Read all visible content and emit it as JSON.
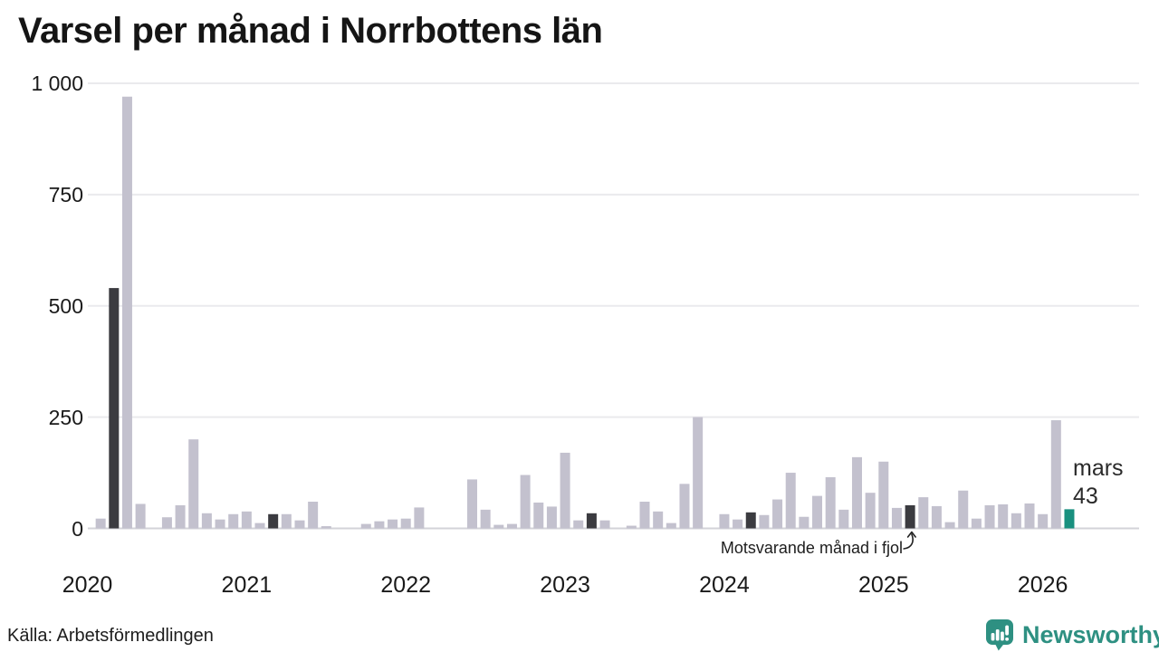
{
  "title": "Varsel per månad i Norrbottens län",
  "annotation": {
    "text": "Motsvarande månad i fjol",
    "target": "2025-03"
  },
  "highlight": {
    "month_label": "mars",
    "value_label": "43"
  },
  "footer": {
    "source": "Källa: Arbetsförmedlingen",
    "logo_text": "Newsworthy"
  },
  "colors": {
    "bar": "#c3c1ce",
    "bar_prev_year_month": "#3b3b40",
    "bar_current": "#19907f",
    "grid": "#eaeaed",
    "zero_axis": "#d3d3d8",
    "text": "#1a1a1a",
    "logo_teal": "#2e9082"
  },
  "chart_data": {
    "type": "bar",
    "title": "Varsel per månad i Norrbottens län",
    "xlabel": "",
    "ylabel": "",
    "ylim": [
      0,
      1000
    ],
    "grid": true,
    "yticks": [
      {
        "value": 0,
        "label": "0"
      },
      {
        "value": 250,
        "label": "250"
      },
      {
        "value": 500,
        "label": "500"
      },
      {
        "value": 750,
        "label": "750"
      },
      {
        "value": 1000,
        "label": "1 000"
      }
    ],
    "year_labels": [
      "2020",
      "2021",
      "2022",
      "2023",
      "2024",
      "2025",
      "2026"
    ],
    "months": [
      {
        "m": "2020-01",
        "v": 0
      },
      {
        "m": "2020-02",
        "v": 22
      },
      {
        "m": "2020-03",
        "v": 540,
        "s": "fjol"
      },
      {
        "m": "2020-04",
        "v": 970
      },
      {
        "m": "2020-05",
        "v": 55
      },
      {
        "m": "2020-06",
        "v": 0
      },
      {
        "m": "2020-07",
        "v": 25
      },
      {
        "m": "2020-08",
        "v": 52
      },
      {
        "m": "2020-09",
        "v": 200
      },
      {
        "m": "2020-10",
        "v": 34
      },
      {
        "m": "2020-11",
        "v": 20
      },
      {
        "m": "2020-12",
        "v": 32
      },
      {
        "m": "2021-01",
        "v": 38
      },
      {
        "m": "2021-02",
        "v": 12
      },
      {
        "m": "2021-03",
        "v": 32,
        "s": "fjol"
      },
      {
        "m": "2021-04",
        "v": 32
      },
      {
        "m": "2021-05",
        "v": 18
      },
      {
        "m": "2021-06",
        "v": 60
      },
      {
        "m": "2021-07",
        "v": 5
      },
      {
        "m": "2021-08",
        "v": 0
      },
      {
        "m": "2021-09",
        "v": 0
      },
      {
        "m": "2021-10",
        "v": 10
      },
      {
        "m": "2021-11",
        "v": 16
      },
      {
        "m": "2021-12",
        "v": 20
      },
      {
        "m": "2022-01",
        "v": 22
      },
      {
        "m": "2022-02",
        "v": 47
      },
      {
        "m": "2022-03",
        "v": 0,
        "s": "fjol"
      },
      {
        "m": "2022-04",
        "v": 0
      },
      {
        "m": "2022-05",
        "v": 0
      },
      {
        "m": "2022-06",
        "v": 110
      },
      {
        "m": "2022-07",
        "v": 42
      },
      {
        "m": "2022-08",
        "v": 8
      },
      {
        "m": "2022-09",
        "v": 10
      },
      {
        "m": "2022-10",
        "v": 120
      },
      {
        "m": "2022-11",
        "v": 58
      },
      {
        "m": "2022-12",
        "v": 49
      },
      {
        "m": "2023-01",
        "v": 170
      },
      {
        "m": "2023-02",
        "v": 18
      },
      {
        "m": "2023-03",
        "v": 34,
        "s": "fjol"
      },
      {
        "m": "2023-04",
        "v": 18
      },
      {
        "m": "2023-05",
        "v": 0
      },
      {
        "m": "2023-06",
        "v": 6
      },
      {
        "m": "2023-07",
        "v": 60
      },
      {
        "m": "2023-08",
        "v": 38
      },
      {
        "m": "2023-09",
        "v": 12
      },
      {
        "m": "2023-10",
        "v": 100
      },
      {
        "m": "2023-11",
        "v": 250
      },
      {
        "m": "2023-12",
        "v": 0
      },
      {
        "m": "2024-01",
        "v": 32
      },
      {
        "m": "2024-02",
        "v": 20
      },
      {
        "m": "2024-03",
        "v": 36,
        "s": "fjol"
      },
      {
        "m": "2024-04",
        "v": 30
      },
      {
        "m": "2024-05",
        "v": 65
      },
      {
        "m": "2024-06",
        "v": 125
      },
      {
        "m": "2024-07",
        "v": 26
      },
      {
        "m": "2024-08",
        "v": 73
      },
      {
        "m": "2024-09",
        "v": 115
      },
      {
        "m": "2024-10",
        "v": 42
      },
      {
        "m": "2024-11",
        "v": 160
      },
      {
        "m": "2024-12",
        "v": 80
      },
      {
        "m": "2025-01",
        "v": 150
      },
      {
        "m": "2025-02",
        "v": 46
      },
      {
        "m": "2025-03",
        "v": 52,
        "s": "fjol"
      },
      {
        "m": "2025-04",
        "v": 70
      },
      {
        "m": "2025-05",
        "v": 50
      },
      {
        "m": "2025-06",
        "v": 14
      },
      {
        "m": "2025-07",
        "v": 85
      },
      {
        "m": "2025-08",
        "v": 22
      },
      {
        "m": "2025-09",
        "v": 52
      },
      {
        "m": "2025-10",
        "v": 54
      },
      {
        "m": "2025-11",
        "v": 34
      },
      {
        "m": "2025-12",
        "v": 56
      },
      {
        "m": "2026-01",
        "v": 32
      },
      {
        "m": "2026-02",
        "v": 243
      },
      {
        "m": "2026-03",
        "v": 43,
        "s": "now"
      }
    ]
  }
}
